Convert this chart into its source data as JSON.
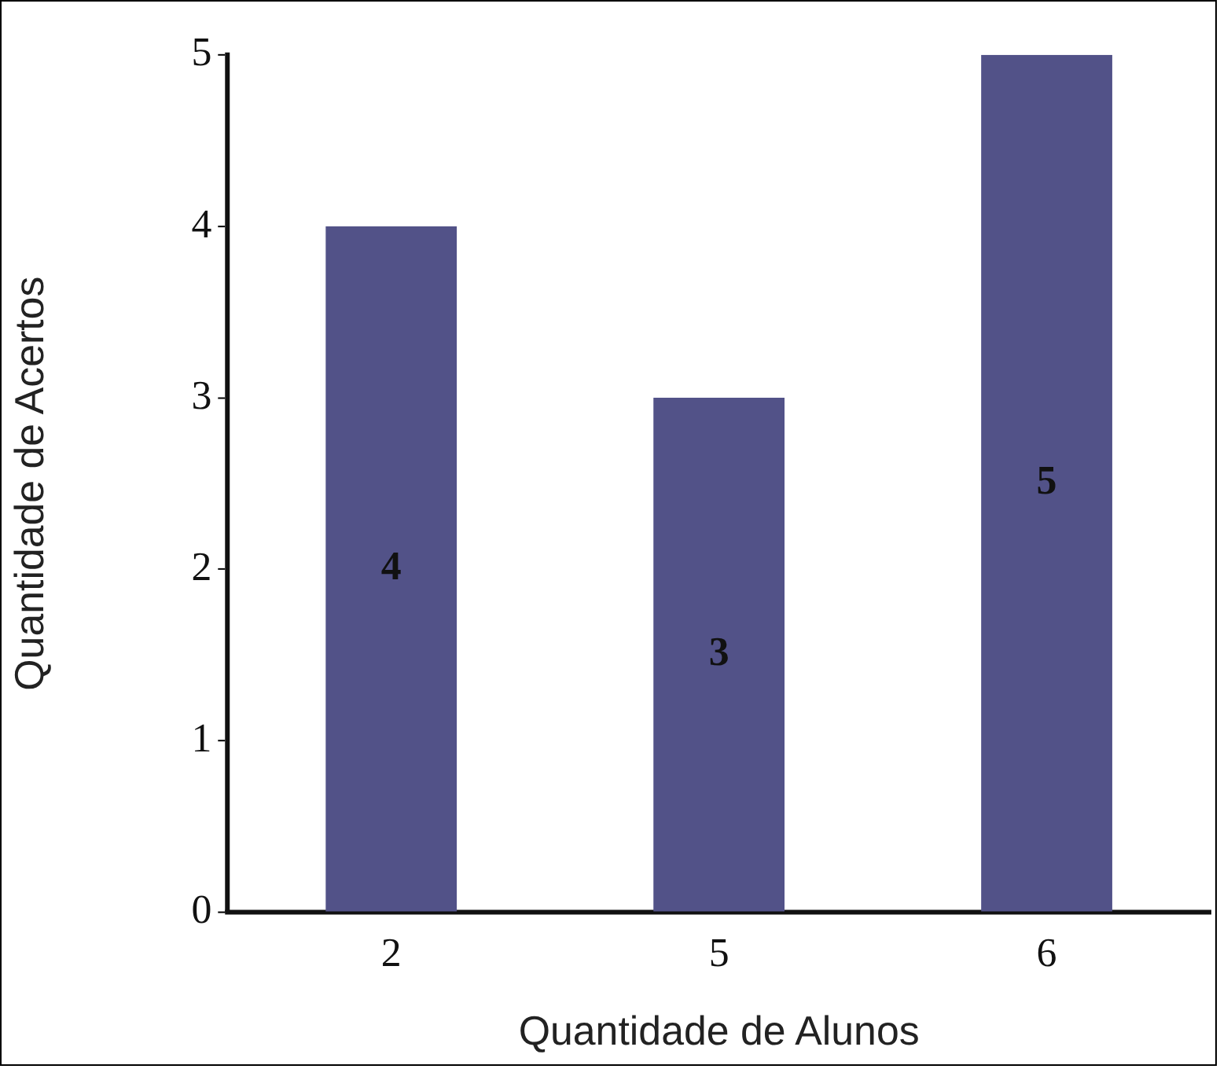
{
  "chart_data": {
    "type": "bar",
    "xlabel": "Quantidade de Alunos",
    "ylabel": "Quantidade de Acertos",
    "categories": [
      "2",
      "5",
      "6"
    ],
    "values": [
      4,
      3,
      5
    ],
    "color": "#525288",
    "ylim": [
      0,
      5
    ],
    "yticks": [
      0,
      1,
      2,
      3,
      4,
      5
    ],
    "grid": false,
    "legend": false,
    "data_labels": true
  }
}
